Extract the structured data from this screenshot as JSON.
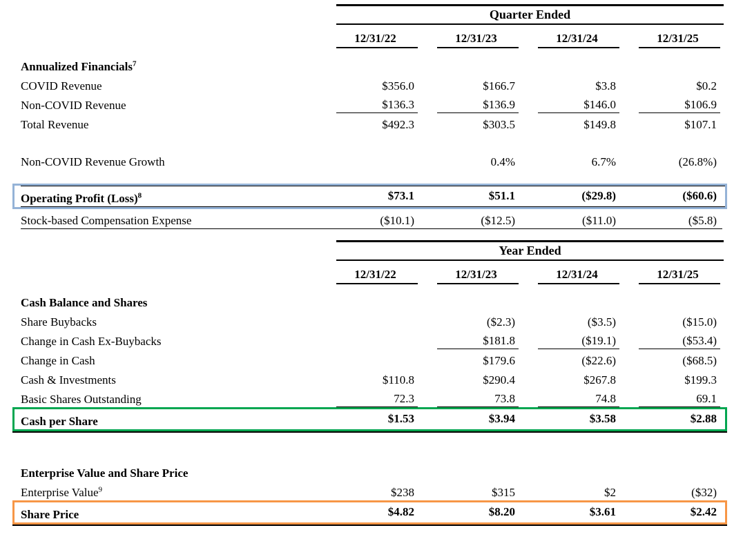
{
  "colors": {
    "operating_profit_box": "#95B3D7",
    "cash_per_share_box": "#00A650",
    "share_price_box": "#F79646"
  },
  "quarter": {
    "title": "Quarter Ended",
    "columns": [
      "12/31/22",
      "12/31/23",
      "12/31/24",
      "12/31/25"
    ],
    "rows": {
      "annualized_financials": {
        "label": "Annualized Financials",
        "sup": "7"
      },
      "covid_revenue": {
        "label": "COVID Revenue",
        "values": [
          "$356.0",
          "$166.7",
          "$3.8",
          "$0.2"
        ]
      },
      "non_covid_revenue": {
        "label": "Non-COVID Revenue",
        "values": [
          "$136.3",
          "$136.9",
          "$146.0",
          "$106.9"
        ]
      },
      "total_revenue": {
        "label": "Total Revenue",
        "values": [
          "$492.3",
          "$303.5",
          "$149.8",
          "$107.1"
        ]
      },
      "non_covid_growth": {
        "label": "Non-COVID Revenue Growth",
        "values": [
          "",
          "0.4%",
          "6.7%",
          "(26.8%)"
        ]
      },
      "operating_profit": {
        "label": "Operating Profit (Loss)",
        "sup": "8",
        "values": [
          "$73.1",
          "$51.1",
          "($29.8)",
          "($60.6)"
        ]
      },
      "sbc": {
        "label": "Stock-based Compensation Expense",
        "values": [
          "($10.1)",
          "($12.5)",
          "($11.0)",
          "($5.8)"
        ]
      }
    }
  },
  "year": {
    "title": "Year Ended",
    "columns": [
      "12/31/22",
      "12/31/23",
      "12/31/24",
      "12/31/25"
    ],
    "rows": {
      "cash_balance_header": {
        "label": "Cash Balance and Shares"
      },
      "share_buybacks": {
        "label": "Share Buybacks",
        "values": [
          "",
          "($2.3)",
          "($3.5)",
          "($15.0)"
        ]
      },
      "change_cash_ex_buybacks": {
        "label": "Change in Cash Ex-Buybacks",
        "values": [
          "",
          "$181.8",
          "($19.1)",
          "($53.4)"
        ]
      },
      "change_cash": {
        "label": "Change in Cash",
        "values": [
          "",
          "$179.6",
          "($22.6)",
          "($68.5)"
        ]
      },
      "cash_investments": {
        "label": "Cash & Investments",
        "values": [
          "$110.8",
          "$290.4",
          "$267.8",
          "$199.3"
        ]
      },
      "basic_shares": {
        "label": "Basic Shares Outstanding",
        "values": [
          "72.3",
          "73.8",
          "74.8",
          "69.1"
        ]
      },
      "cash_per_share": {
        "label": "Cash per Share",
        "values": [
          "$1.53",
          "$3.94",
          "$3.58",
          "$2.88"
        ]
      },
      "ev_header": {
        "label": "Enterprise Value and Share Price"
      },
      "enterprise_value": {
        "label": "Enterprise Value",
        "sup": "9",
        "values": [
          "$238",
          "$315",
          "$2",
          "($32)"
        ]
      },
      "share_price": {
        "label": "Share Price",
        "values": [
          "$4.82",
          "$8.20",
          "$3.61",
          "$2.42"
        ]
      }
    }
  }
}
